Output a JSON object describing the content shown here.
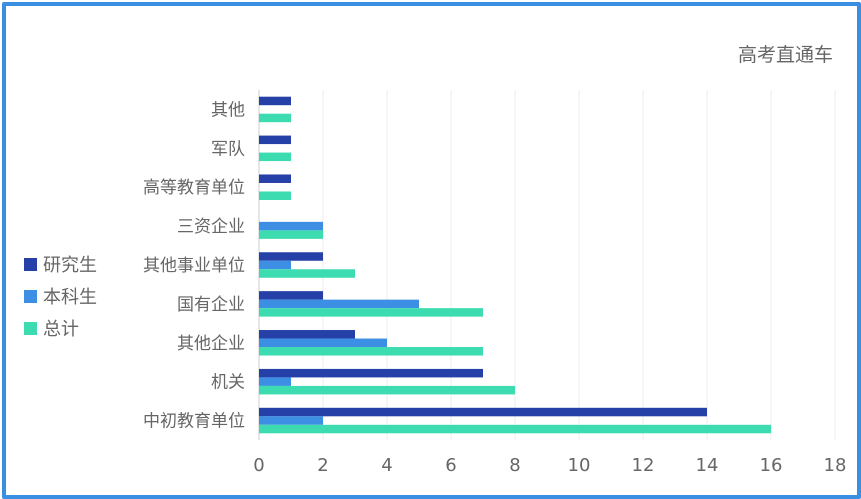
{
  "chart_data": {
    "type": "bar",
    "orientation": "horizontal",
    "categories": [
      "中初教育单位",
      "机关",
      "其他企业",
      "国有企业",
      "其他事业单位",
      "三资企业",
      "高等教育单位",
      "军队",
      "其他"
    ],
    "series": [
      {
        "name": "研究生",
        "color": "#2541a8",
        "values": [
          14,
          7,
          3,
          2,
          2,
          0,
          1,
          1,
          1
        ]
      },
      {
        "name": "本科生",
        "color": "#3d8fe3",
        "values": [
          2,
          1,
          4,
          5,
          1,
          2,
          0,
          0,
          0
        ]
      },
      {
        "name": "总计",
        "color": "#3ddbb0",
        "values": [
          16,
          8,
          7,
          7,
          3,
          2,
          1,
          1,
          1
        ]
      }
    ],
    "xlim": [
      0,
      18
    ],
    "xticks": [
      "0",
      "2",
      "4",
      "6",
      "8",
      "10",
      "12",
      "14",
      "16",
      "18"
    ],
    "grid": true,
    "legend_position": "left"
  },
  "watermark": "高考直通车"
}
